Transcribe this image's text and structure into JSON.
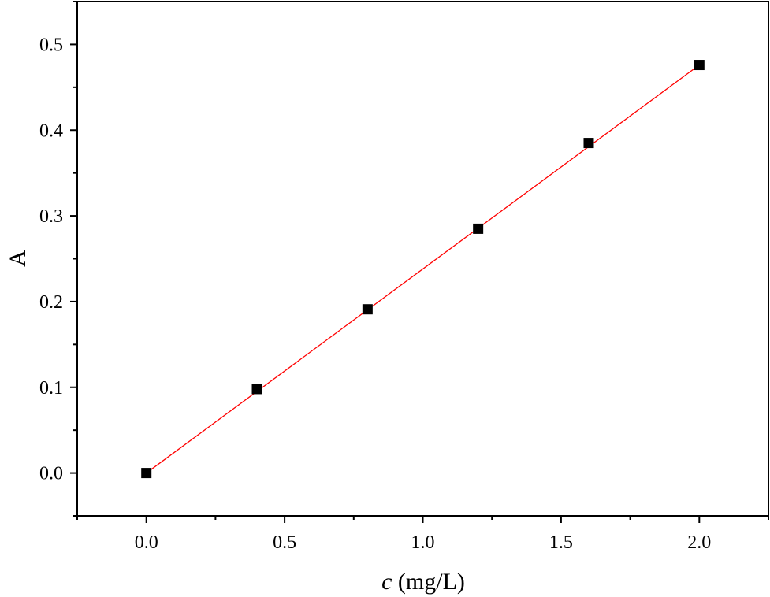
{
  "chart_data": {
    "type": "scatter",
    "title": "",
    "xlabel_var": "c",
    "xlabel_unit": " (mg/L)",
    "ylabel": "A",
    "xlim": [
      -0.25,
      2.25
    ],
    "ylim": [
      -0.05,
      0.55
    ],
    "x_ticks": [
      0.0,
      0.5,
      1.0,
      1.5,
      2.0
    ],
    "x_tick_labels": [
      "0.0",
      "0.5",
      "1.0",
      "1.5",
      "2.0"
    ],
    "y_ticks": [
      0.0,
      0.1,
      0.2,
      0.3,
      0.4,
      0.5
    ],
    "y_tick_labels": [
      "0.0",
      "0.1",
      "0.2",
      "0.3",
      "0.4",
      "0.5"
    ],
    "grid": false,
    "legend": "none",
    "series": [
      {
        "marker": "square",
        "color": "#000000",
        "x": [
          0.0,
          0.4,
          0.8,
          1.2,
          1.6,
          2.0
        ],
        "y": [
          0.0,
          0.098,
          0.191,
          0.285,
          0.385,
          0.476
        ]
      }
    ],
    "fit_line": {
      "color": "#ff0000",
      "x": [
        0.0,
        2.0
      ],
      "y": [
        0.0,
        0.476
      ]
    }
  }
}
